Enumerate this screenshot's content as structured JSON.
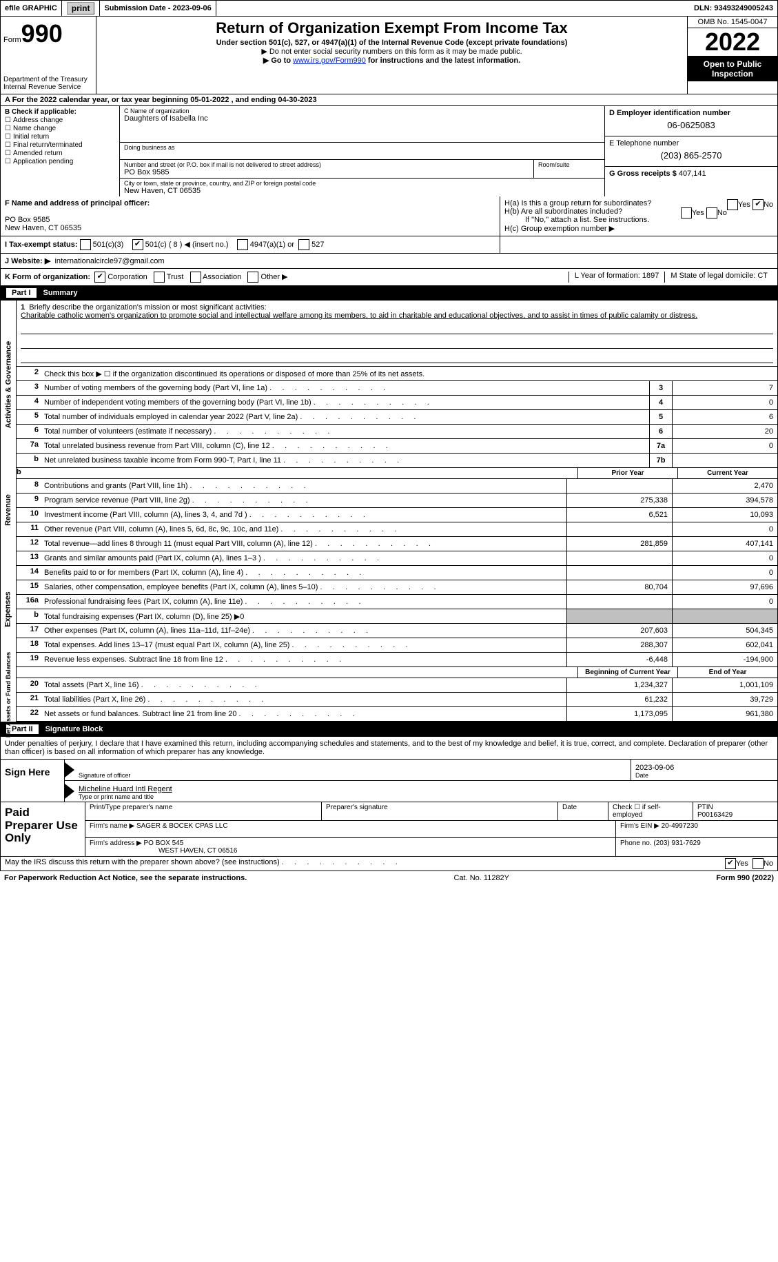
{
  "topbar": {
    "efile": "efile GRAPHIC",
    "print": "print",
    "submission": "Submission Date - 2023-09-06",
    "dln": "DLN: 93493249005243"
  },
  "header": {
    "form_label": "Form",
    "form_num": "990",
    "dept": "Department of the Treasury",
    "irs": "Internal Revenue Service",
    "title": "Return of Organization Exempt From Income Tax",
    "sub1": "Under section 501(c), 527, or 4947(a)(1) of the Internal Revenue Code (except private foundations)",
    "sub2": "▶ Do not enter social security numbers on this form as it may be made public.",
    "sub3": "▶ Go to ",
    "link": "www.irs.gov/Form990",
    "sub3b": " for instructions and the latest information.",
    "omb": "OMB No. 1545-0047",
    "year": "2022",
    "inspect": "Open to Public Inspection"
  },
  "rowA": "A For the 2022 calendar year, or tax year beginning 05-01-2022     , and ending 04-30-2023",
  "colB": {
    "label": "B Check if applicable:",
    "items": [
      "Address change",
      "Name change",
      "Initial return",
      "Final return/terminated",
      "Amended return",
      "Application pending"
    ]
  },
  "colC": {
    "name_label": "C Name of organization",
    "name": "Daughters of Isabella Inc",
    "dba_label": "Doing business as",
    "street_label": "Number and street (or P.O. box if mail is not delivered to street address)",
    "street": "PO Box 9585",
    "suite_label": "Room/suite",
    "city_label": "City or town, state or province, country, and ZIP or foreign postal code",
    "city": "New Haven, CT  06535"
  },
  "colD": {
    "label": "D Employer identification number",
    "val": "06-0625083"
  },
  "colE": {
    "label": "E Telephone number",
    "val": "(203) 865-2570"
  },
  "colG": {
    "label": "G Gross receipts $",
    "val": "407,141"
  },
  "rowF": {
    "label": "F  Name and address of principal officer:",
    "line1": "PO Box 9585",
    "line2": "New Haven, CT  06535"
  },
  "rowH": {
    "a": "H(a)  Is this a group return for subordinates?",
    "b": "H(b)  Are all subordinates included?",
    "note": "If \"No,\" attach a list. See instructions.",
    "c": "H(c)  Group exemption number ▶"
  },
  "rowI": {
    "label": "I    Tax-exempt status:",
    "opts": "501(c)(3)          501(c) ( 8 ) ◀ (insert no.)          4947(a)(1) or          527"
  },
  "rowJ": {
    "label": "J   Website: ▶",
    "val": "internationalcircle97@gmail.com"
  },
  "rowK": {
    "label": "K Form of organization:",
    "opts": "Corporation        Trust        Association        Other ▶",
    "l": "L Year of formation: 1897",
    "m": "M State of legal domicile: CT"
  },
  "part1": {
    "label": "Part I",
    "title": "Summary"
  },
  "mission": {
    "num": "1",
    "label": "Briefly describe the organization's mission or most significant activities:",
    "text": "Charitable catholic women's organization to promote social and intellectual welfare among its members, to aid in charitable and educational objectives, and to assist in times of public calamity or distress."
  },
  "line2": "Check this box ▶ ☐  if the organization discontinued its operations or disposed of more than 25% of its net assets.",
  "sidebars": {
    "ag": "Activities & Governance",
    "rev": "Revenue",
    "exp": "Expenses",
    "na": "Net Assets or Fund Balances"
  },
  "lines_ag": [
    {
      "n": "3",
      "d": "Number of voting members of the governing body (Part VI, line 1a)",
      "b": "3",
      "v": "7"
    },
    {
      "n": "4",
      "d": "Number of independent voting members of the governing body (Part VI, line 1b)",
      "b": "4",
      "v": "0"
    },
    {
      "n": "5",
      "d": "Total number of individuals employed in calendar year 2022 (Part V, line 2a)",
      "b": "5",
      "v": "6"
    },
    {
      "n": "6",
      "d": "Total number of volunteers (estimate if necessary)",
      "b": "6",
      "v": "20"
    },
    {
      "n": "7a",
      "d": "Total unrelated business revenue from Part VIII, column (C), line 12",
      "b": "7a",
      "v": "0"
    },
    {
      "n": "b",
      "d": "Net unrelated business taxable income from Form 990-T, Part I, line 11",
      "b": "7b",
      "v": ""
    }
  ],
  "cols": {
    "prior": "Prior Year",
    "current": "Current Year"
  },
  "lines_rev": [
    {
      "n": "8",
      "d": "Contributions and grants (Part VIII, line 1h)",
      "p": "",
      "c": "2,470"
    },
    {
      "n": "9",
      "d": "Program service revenue (Part VIII, line 2g)",
      "p": "275,338",
      "c": "394,578"
    },
    {
      "n": "10",
      "d": "Investment income (Part VIII, column (A), lines 3, 4, and 7d )",
      "p": "6,521",
      "c": "10,093"
    },
    {
      "n": "11",
      "d": "Other revenue (Part VIII, column (A), lines 5, 6d, 8c, 9c, 10c, and 11e)",
      "p": "",
      "c": "0"
    },
    {
      "n": "12",
      "d": "Total revenue—add lines 8 through 11 (must equal Part VIII, column (A), line 12)",
      "p": "281,859",
      "c": "407,141"
    }
  ],
  "lines_exp": [
    {
      "n": "13",
      "d": "Grants and similar amounts paid (Part IX, column (A), lines 1–3 )",
      "p": "",
      "c": "0"
    },
    {
      "n": "14",
      "d": "Benefits paid to or for members (Part IX, column (A), line 4)",
      "p": "",
      "c": "0"
    },
    {
      "n": "15",
      "d": "Salaries, other compensation, employee benefits (Part IX, column (A), lines 5–10)",
      "p": "80,704",
      "c": "97,696"
    },
    {
      "n": "16a",
      "d": "Professional fundraising fees (Part IX, column (A), line 11e)",
      "p": "",
      "c": "0"
    },
    {
      "n": "b",
      "d": "Total fundraising expenses (Part IX, column (D), line 25) ▶0",
      "shaded": true
    },
    {
      "n": "17",
      "d": "Other expenses (Part IX, column (A), lines 11a–11d, 11f–24e)",
      "p": "207,603",
      "c": "504,345"
    },
    {
      "n": "18",
      "d": "Total expenses. Add lines 13–17 (must equal Part IX, column (A), line 25)",
      "p": "288,307",
      "c": "602,041"
    },
    {
      "n": "19",
      "d": "Revenue less expenses. Subtract line 18 from line 12",
      "p": "-6,448",
      "c": "-194,900"
    }
  ],
  "cols2": {
    "beg": "Beginning of Current Year",
    "end": "End of Year"
  },
  "lines_na": [
    {
      "n": "20",
      "d": "Total assets (Part X, line 16)",
      "p": "1,234,327",
      "c": "1,001,109"
    },
    {
      "n": "21",
      "d": "Total liabilities (Part X, line 26)",
      "p": "61,232",
      "c": "39,729"
    },
    {
      "n": "22",
      "d": "Net assets or fund balances. Subtract line 21 from line 20",
      "p": "1,173,095",
      "c": "961,380"
    }
  ],
  "part2": {
    "label": "Part II",
    "title": "Signature Block"
  },
  "sig_text": "Under penalties of perjury, I declare that I have examined this return, including accompanying schedules and statements, and to the best of my knowledge and belief, it is true, correct, and complete. Declaration of preparer (other than officer) is based on all information of which preparer has any knowledge.",
  "sign": {
    "here": "Sign Here",
    "sig_label": "Signature of officer",
    "date": "2023-09-06",
    "date_label": "Date",
    "name": "Micheline Huard  Intl Regent",
    "name_label": "Type or print name and title"
  },
  "prep": {
    "title": "Paid Preparer Use Only",
    "h1": "Print/Type preparer's name",
    "h2": "Preparer's signature",
    "h3": "Date",
    "h4": "Check ☐ if self-employed",
    "h5": "PTIN",
    "ptin": "P00163429",
    "firm_label": "Firm's name    ▶",
    "firm": "SAGER & BOCEK CPAS LLC",
    "ein_label": "Firm's EIN ▶",
    "ein": "20-4997230",
    "addr_label": "Firm's address ▶",
    "addr1": "PO BOX 545",
    "addr2": "WEST HAVEN, CT  06516",
    "phone_label": "Phone no.",
    "phone": "(203) 931-7629"
  },
  "discuss": "May the IRS discuss this return with the preparer shown above? (see instructions)",
  "footer": {
    "paperwork": "For Paperwork Reduction Act Notice, see the separate instructions.",
    "cat": "Cat. No. 11282Y",
    "form": "Form 990 (2022)"
  }
}
